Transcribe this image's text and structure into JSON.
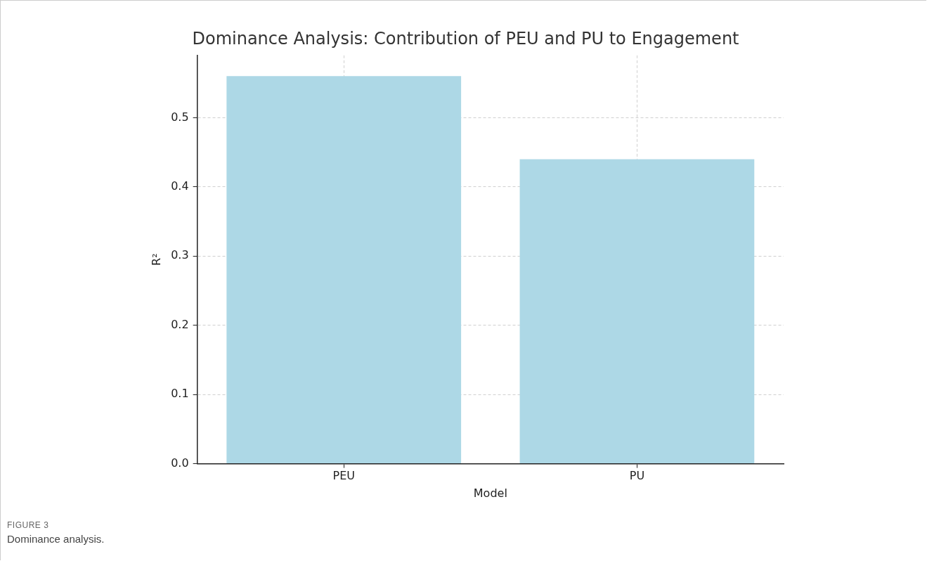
{
  "chart_data": {
    "type": "bar",
    "title": "Dominance Analysis: Contribution of PEU and PU to Engagement",
    "xlabel": "Model",
    "ylabel": "R²",
    "categories": [
      "PEU",
      "PU"
    ],
    "values": [
      0.56,
      0.44
    ],
    "color": "#add8e6",
    "ylim": [
      0,
      0.59
    ],
    "yticks": [
      {
        "value": 0,
        "label": "0.0"
      },
      0.1,
      0.2,
      0.3,
      0.4,
      0.5
    ],
    "grid": true,
    "legend": false,
    "annotations": [
      "FIGURE 3",
      "Dominance analysis."
    ]
  }
}
